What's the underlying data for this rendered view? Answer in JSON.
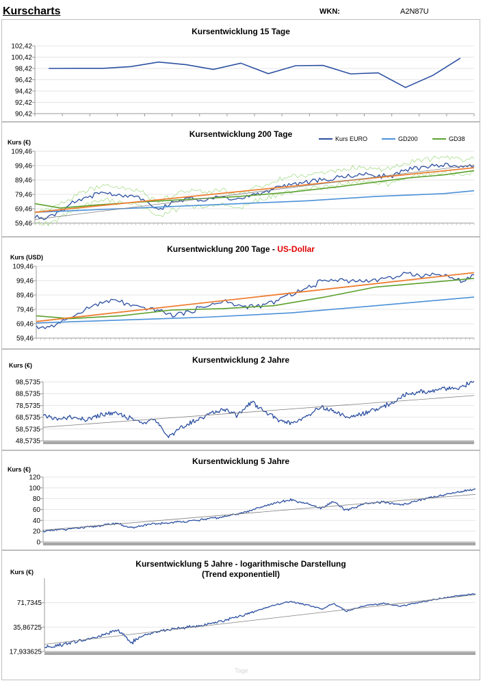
{
  "header": {
    "title": "Kurscharts",
    "wkn_label": "WKN:",
    "wkn_value": "A2N87U"
  },
  "colors": {
    "kurs": "#2b4fa1",
    "gd200": "#4a90d9",
    "gd38": "#5aa02c",
    "trend_orange": "#ed7d31",
    "trend_gray": "#808080",
    "thin_green": "#9bd77a"
  },
  "legend": {
    "kurs": "Kurs EURO",
    "gd200": "GD200",
    "gd38": "GD38"
  },
  "footer": {
    "text": "Tage"
  },
  "chart_data": [
    {
      "type": "line",
      "title": "Kursentwicklung 15 Tage",
      "ylabel": "",
      "yticks": [
        "102,42",
        "100,42",
        "98,42",
        "96,42",
        "94,42",
        "92,42",
        "90,42"
      ],
      "ylim": [
        90.42,
        102.42
      ],
      "series": [
        {
          "name": "Kurs",
          "values": [
            98.42,
            98.45,
            98.45,
            98.75,
            99.55,
            99.1,
            98.25,
            99.35,
            97.5,
            98.9,
            98.95,
            97.45,
            97.65,
            95.05,
            97.2,
            100.25
          ]
        }
      ]
    },
    {
      "type": "line",
      "title": "Kursentwicklung 200 Tage",
      "ylabel": "Kurs (€)",
      "yticks": [
        "109,46",
        "99,46",
        "89,46",
        "79,46",
        "69,46",
        "59,46"
      ],
      "ylim": [
        59.46,
        109.46
      ],
      "legend": [
        "Kurs EURO",
        "GD200",
        "GD38"
      ],
      "series": [
        {
          "name": "Kurs EURO",
          "points": [
            [
              0,
              63
            ],
            [
              8,
              64
            ],
            [
              15,
              68
            ],
            [
              22,
              73
            ],
            [
              32,
              78
            ],
            [
              42,
              81
            ],
            [
              52,
              78
            ],
            [
              60,
              78
            ],
            [
              66,
              73
            ],
            [
              72,
              69
            ],
            [
              80,
              73
            ],
            [
              90,
              77
            ],
            [
              100,
              76
            ],
            [
              110,
              78
            ],
            [
              118,
              75
            ],
            [
              128,
              79
            ],
            [
              138,
              82
            ],
            [
              148,
              86
            ],
            [
              158,
              88
            ],
            [
              168,
              89
            ],
            [
              178,
              91
            ],
            [
              188,
              93
            ],
            [
              198,
              93
            ],
            [
              208,
              92
            ],
            [
              218,
              96
            ],
            [
              230,
              99
            ],
            [
              242,
              100
            ],
            [
              252,
              98
            ],
            [
              258,
              100
            ]
          ]
        },
        {
          "name": "GD200",
          "points": [
            [
              0,
              67
            ],
            [
              40,
              69
            ],
            [
              80,
              71
            ],
            [
              120,
              73
            ],
            [
              160,
              75
            ],
            [
              200,
              78
            ],
            [
              240,
              80
            ],
            [
              258,
              82
            ]
          ]
        },
        {
          "name": "GD38",
          "points": [
            [
              0,
              73
            ],
            [
              15,
              70
            ],
            [
              35,
              72
            ],
            [
              60,
              74
            ],
            [
              90,
              76
            ],
            [
              120,
              78
            ],
            [
              150,
              81
            ],
            [
              180,
              85
            ],
            [
              200,
              88
            ],
            [
              220,
              91
            ],
            [
              240,
              93
            ],
            [
              258,
              96
            ]
          ]
        },
        {
          "name": "Trend orange",
          "points": [
            [
              0,
              67
            ],
            [
              258,
              98
            ]
          ]
        },
        {
          "name": "Trend gray",
          "points": [
            [
              0,
              62
            ],
            [
              258,
              100
            ]
          ]
        }
      ]
    },
    {
      "type": "line",
      "title": "Kursentwicklung 200 Tage - ",
      "title_highlight": "US-Dollar",
      "ylabel": "Kurs (USD)",
      "yticks": [
        "109,46",
        "99,46",
        "89,46",
        "79,46",
        "69,46",
        "59,46"
      ],
      "ylim": [
        59.46,
        109.46
      ],
      "series": [
        {
          "name": "Kurs USD",
          "points": [
            [
              0,
              67
            ],
            [
              10,
              68
            ],
            [
              18,
              72
            ],
            [
              28,
              79
            ],
            [
              38,
              84
            ],
            [
              48,
              86
            ],
            [
              55,
              82
            ],
            [
              64,
              80
            ],
            [
              72,
              79
            ],
            [
              80,
              75
            ],
            [
              90,
              78
            ],
            [
              100,
              82
            ],
            [
              110,
              85
            ],
            [
              120,
              82
            ],
            [
              130,
              81
            ],
            [
              140,
              85
            ],
            [
              150,
              90
            ],
            [
              160,
              94
            ],
            [
              170,
              100
            ],
            [
              180,
              100
            ],
            [
              190,
              99
            ],
            [
              200,
              100
            ],
            [
              210,
              102
            ],
            [
              220,
              104
            ],
            [
              230,
              103
            ],
            [
              240,
              104
            ],
            [
              250,
              99
            ],
            [
              258,
              104
            ]
          ]
        },
        {
          "name": "GD200",
          "points": [
            [
              0,
              70
            ],
            [
              50,
              72
            ],
            [
              100,
              74
            ],
            [
              150,
              77
            ],
            [
              200,
              82
            ],
            [
              258,
              88
            ]
          ]
        },
        {
          "name": "GD38",
          "points": [
            [
              0,
              75
            ],
            [
              20,
              73
            ],
            [
              50,
              75
            ],
            [
              80,
              79
            ],
            [
              110,
              80
            ],
            [
              140,
              82
            ],
            [
              170,
              88
            ],
            [
              200,
              95
            ],
            [
              230,
              98
            ],
            [
              258,
              101
            ]
          ]
        },
        {
          "name": "Trend orange",
          "points": [
            [
              0,
              71
            ],
            [
              258,
              105
            ]
          ]
        }
      ]
    },
    {
      "type": "line",
      "title": "Kursentwicklung 2 Jahre",
      "ylabel": "Kurs (€)",
      "yticks": [
        "98,5735",
        "88,5735",
        "78,5735",
        "68,5735",
        "58,5735",
        "48,5735"
      ],
      "ylim": [
        48.5735,
        98.5735
      ],
      "series": [
        {
          "name": "Kurs",
          "points": [
            [
              0,
              70
            ],
            [
              20,
              67
            ],
            [
              40,
              68
            ],
            [
              60,
              66
            ],
            [
              80,
              70
            ],
            [
              100,
              72
            ],
            [
              120,
              69
            ],
            [
              140,
              64
            ],
            [
              160,
              67
            ],
            [
              180,
              52
            ],
            [
              200,
              60
            ],
            [
              220,
              66
            ],
            [
              240,
              72
            ],
            [
              260,
              75
            ],
            [
              280,
              70
            ],
            [
              300,
              82
            ],
            [
              320,
              73
            ],
            [
              340,
              66
            ],
            [
              360,
              63
            ],
            [
              380,
              70
            ],
            [
              400,
              77
            ],
            [
              420,
              73
            ],
            [
              440,
              68
            ],
            [
              460,
              72
            ],
            [
              480,
              75
            ],
            [
              500,
              80
            ],
            [
              520,
              88
            ],
            [
              540,
              90
            ],
            [
              560,
              91
            ],
            [
              580,
              93
            ],
            [
              600,
              94
            ],
            [
              620,
              99
            ]
          ]
        },
        {
          "name": "Trend",
          "points": [
            [
              0,
              60
            ],
            [
              620,
              87
            ]
          ]
        }
      ]
    },
    {
      "type": "line",
      "title": "Kursentwicklung 5 Jahre",
      "ylabel": "Kurs (€)",
      "yticks": [
        "120",
        "100",
        "80",
        "60",
        "40",
        "20",
        "0"
      ],
      "ylim": [
        0,
        120
      ],
      "series": [
        {
          "name": "Kurs",
          "points": [
            [
              0,
              20
            ],
            [
              40,
              24
            ],
            [
              80,
              28
            ],
            [
              120,
              35
            ],
            [
              140,
              26
            ],
            [
              170,
              32
            ],
            [
              210,
              36
            ],
            [
              250,
              40
            ],
            [
              290,
              46
            ],
            [
              330,
              56
            ],
            [
              370,
              70
            ],
            [
              400,
              78
            ],
            [
              430,
              70
            ],
            [
              450,
              62
            ],
            [
              470,
              75
            ],
            [
              490,
              58
            ],
            [
              520,
              70
            ],
            [
              550,
              74
            ],
            [
              580,
              68
            ],
            [
              610,
              78
            ],
            [
              640,
              85
            ],
            [
              670,
              92
            ],
            [
              700,
              98
            ]
          ]
        },
        {
          "name": "Trend",
          "points": [
            [
              0,
              22
            ],
            [
              700,
              88
            ]
          ]
        }
      ]
    },
    {
      "type": "line",
      "title": "Kursentwicklung 5 Jahre - logarithmische Darstellung",
      "subtitle": "(Trend exponentiell)",
      "ylabel": "Kurs (€)",
      "yscale": "log",
      "yticks": [
        "71,7345",
        "35,86725",
        "17,933625"
      ],
      "ylim": [
        17.933625,
        143.469
      ],
      "series": [
        {
          "name": "Kurs",
          "points": [
            [
              0,
              20
            ],
            [
              40,
              23
            ],
            [
              80,
              26
            ],
            [
              120,
              33
            ],
            [
              140,
              23
            ],
            [
              170,
              30
            ],
            [
              210,
              34
            ],
            [
              250,
              37
            ],
            [
              290,
              43
            ],
            [
              330,
              52
            ],
            [
              370,
              66
            ],
            [
              400,
              74
            ],
            [
              430,
              66
            ],
            [
              450,
              60
            ],
            [
              470,
              70
            ],
            [
              490,
              56
            ],
            [
              520,
              66
            ],
            [
              550,
              70
            ],
            [
              580,
              65
            ],
            [
              610,
              73
            ],
            [
              640,
              80
            ],
            [
              670,
              87
            ],
            [
              700,
              92
            ]
          ]
        },
        {
          "name": "Trend",
          "points": [
            [
              0,
              22
            ],
            [
              700,
              90
            ]
          ]
        }
      ]
    }
  ]
}
